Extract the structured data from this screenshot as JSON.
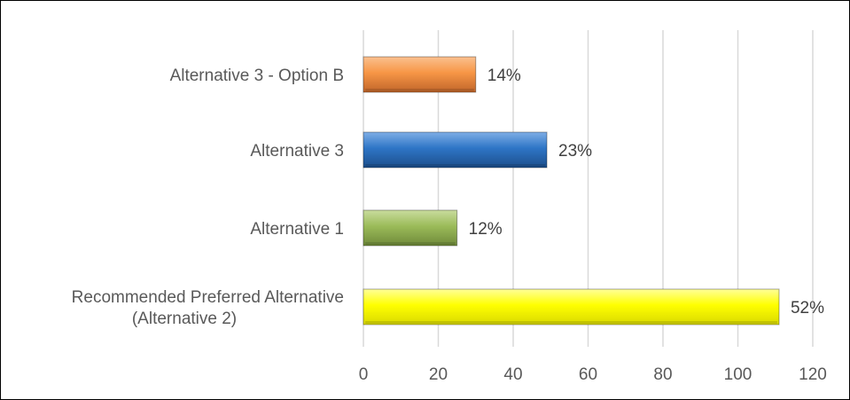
{
  "chart_data": {
    "type": "bar",
    "orientation": "horizontal",
    "categories": [
      [
        "Alternative 3 - Option B"
      ],
      [
        "Alternative 3"
      ],
      [
        "Alternative 1"
      ],
      [
        "Recommended Preferred Alternative",
        "(Alternative 2)"
      ]
    ],
    "values": [
      30,
      49,
      25,
      111
    ],
    "data_labels": [
      "14%",
      "23%",
      "12%",
      "52%"
    ],
    "colors": [
      "#F79646",
      "#2E75C6",
      "#9BBB59",
      "#FFFF00"
    ],
    "xlim": [
      0,
      120
    ],
    "x_ticks": [
      "0",
      "20",
      "40",
      "60",
      "80",
      "100",
      "120"
    ],
    "grid": "vertical"
  }
}
